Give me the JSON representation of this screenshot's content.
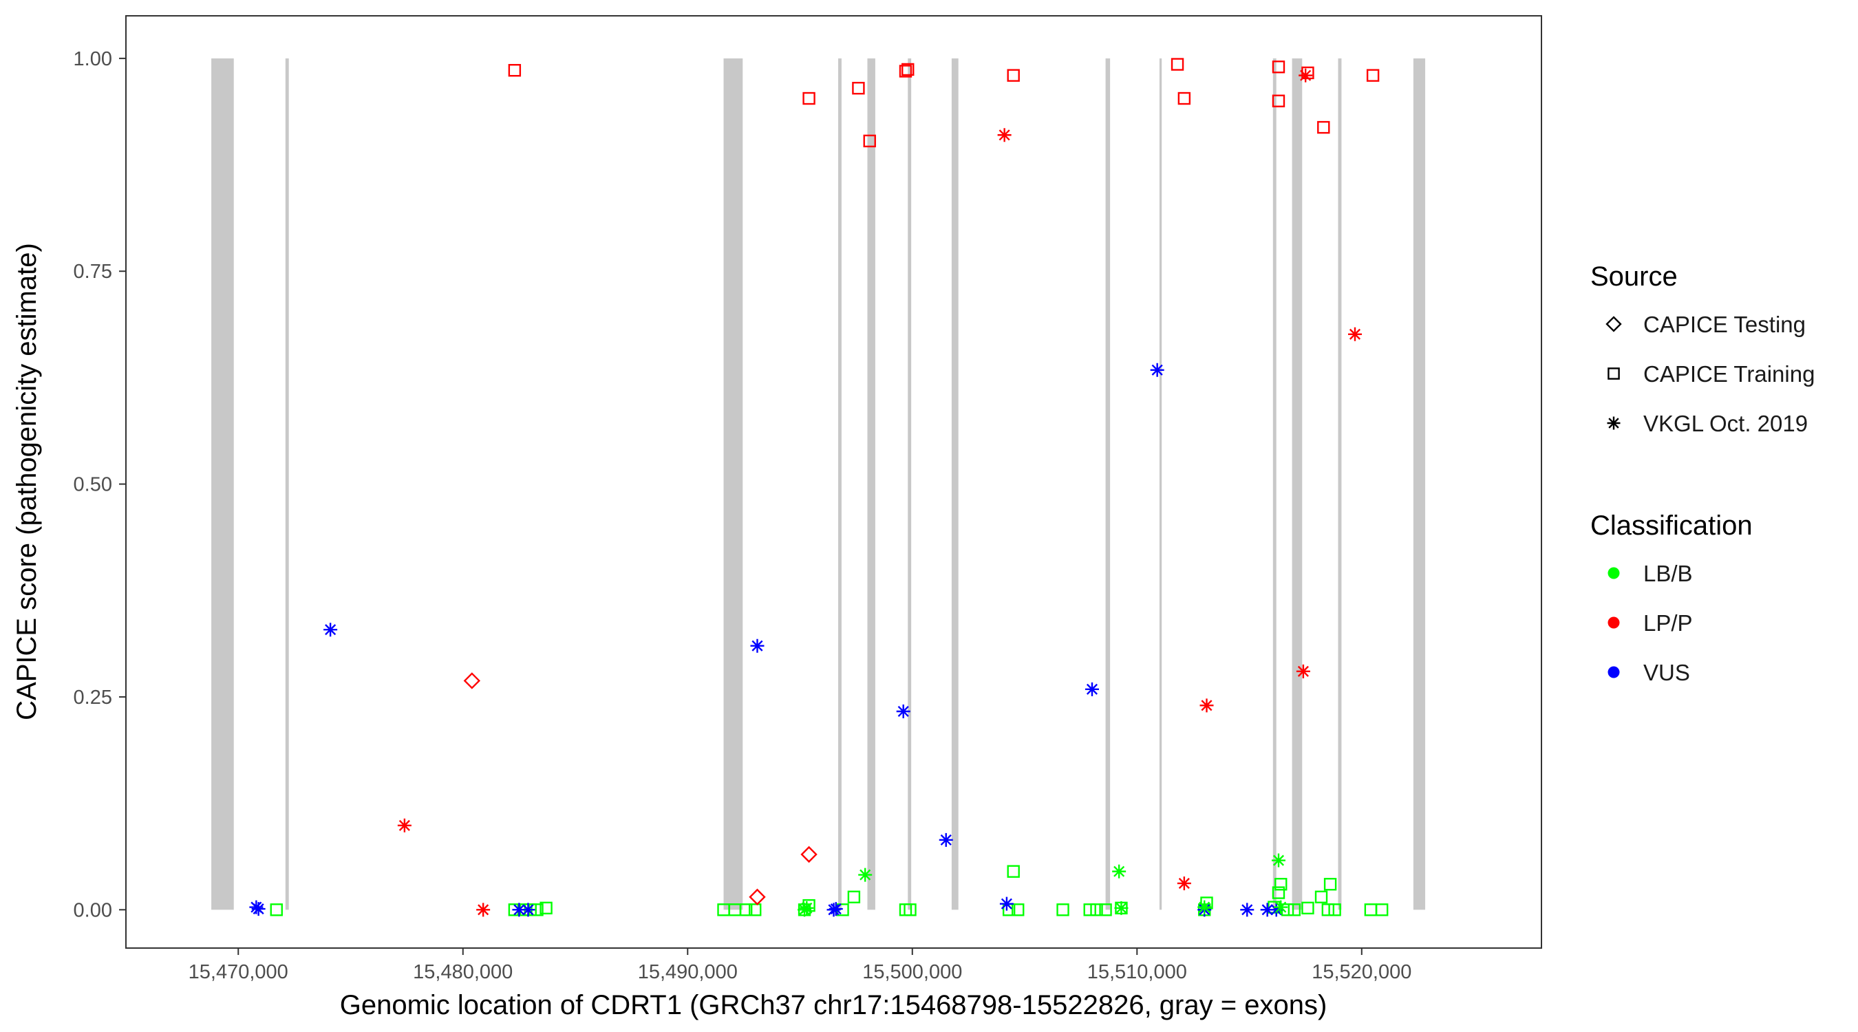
{
  "chart_data": {
    "type": "scatter",
    "xlabel": "Genomic location of CDRT1 (GRCh37 chr17:15468798-15522826, gray = exons)",
    "ylabel": "CAPICE score (pathogenicity estimate)",
    "xlim": [
      15465000,
      15528000
    ],
    "ylim": [
      -0.045,
      1.05
    ],
    "x_ticks": [
      15470000,
      15480000,
      15490000,
      15500000,
      15510000,
      15520000
    ],
    "x_tick_labels": [
      "15,470,000",
      "15,480,000",
      "15,490,000",
      "15,500,000",
      "15,510,000",
      "15,520,000"
    ],
    "y_ticks": [
      0,
      0.25,
      0.5,
      0.75,
      1
    ],
    "y_tick_labels": [
      "0.00",
      "0.25",
      "0.50",
      "0.75",
      "1.00"
    ],
    "grid": false,
    "exons": [
      [
        15468800,
        15469800
      ],
      [
        15472100,
        15472250
      ],
      [
        15491600,
        15492450
      ],
      [
        15496700,
        15496850
      ],
      [
        15498000,
        15498350
      ],
      [
        15499800,
        15499950
      ],
      [
        15501750,
        15502050
      ],
      [
        15508600,
        15508800
      ],
      [
        15511000,
        15511100
      ],
      [
        15516050,
        15516200
      ],
      [
        15516900,
        15517350
      ],
      [
        15518950,
        15519100
      ],
      [
        15522300,
        15522826
      ]
    ],
    "legend_placement": "right",
    "legends": {
      "source": {
        "title": "Source",
        "items": [
          {
            "label": "CAPICE Testing",
            "shape": "diamond"
          },
          {
            "label": "CAPICE Training",
            "shape": "square"
          },
          {
            "label": "VKGL Oct. 2019",
            "shape": "asterisk"
          }
        ]
      },
      "classification": {
        "title": "Classification",
        "items": [
          {
            "label": "LB/B",
            "color": "#00ff00"
          },
          {
            "label": "LP/P",
            "color": "#ff0000"
          },
          {
            "label": "VUS",
            "color": "#0000ff"
          }
        ]
      }
    },
    "series": [
      {
        "source": "CAPICE Training",
        "shape": "square",
        "classification": "LP/P",
        "color": "#ff0000",
        "points": [
          [
            15482300,
            0.986
          ],
          [
            15495400,
            0.953
          ],
          [
            15497600,
            0.965
          ],
          [
            15498100,
            0.903
          ],
          [
            15499700,
            0.985
          ],
          [
            15499800,
            0.987
          ],
          [
            15504500,
            0.98
          ],
          [
            15511800,
            0.993
          ],
          [
            15512100,
            0.953
          ],
          [
            15516300,
            0.99
          ],
          [
            15516300,
            0.95
          ],
          [
            15517600,
            0.983
          ],
          [
            15518300,
            0.919
          ],
          [
            15520500,
            0.98
          ]
        ]
      },
      {
        "source": "CAPICE Training",
        "shape": "square",
        "classification": "LB/B",
        "color": "#00ff00",
        "points": [
          [
            15471700,
            0.0
          ],
          [
            15482300,
            0.0
          ],
          [
            15482700,
            0.0
          ],
          [
            15483000,
            0.0
          ],
          [
            15483300,
            0.0
          ],
          [
            15483700,
            0.002
          ],
          [
            15491600,
            0.0
          ],
          [
            15492100,
            0.0
          ],
          [
            15492600,
            0.0
          ],
          [
            15493000,
            0.0
          ],
          [
            15495200,
            0.0
          ],
          [
            15495400,
            0.005
          ],
          [
            15496900,
            0.0
          ],
          [
            15497400,
            0.015
          ],
          [
            15499700,
            0.0
          ],
          [
            15499900,
            0.0
          ],
          [
            15504300,
            0.0
          ],
          [
            15504500,
            0.045
          ],
          [
            15504700,
            0.0
          ],
          [
            15506700,
            0.0
          ],
          [
            15507900,
            0.0
          ],
          [
            15508200,
            0.0
          ],
          [
            15508600,
            0.0
          ],
          [
            15509300,
            0.002
          ],
          [
            15513000,
            0.0
          ],
          [
            15513100,
            0.008
          ],
          [
            15516100,
            0.003
          ],
          [
            15516300,
            0.02
          ],
          [
            15516400,
            0.03
          ],
          [
            15516700,
            0.0
          ],
          [
            15517000,
            0.0
          ],
          [
            15517600,
            0.002
          ],
          [
            15518200,
            0.015
          ],
          [
            15518500,
            0.0
          ],
          [
            15518600,
            0.03
          ],
          [
            15518800,
            0.0
          ],
          [
            15520400,
            0.0
          ],
          [
            15520900,
            0.0
          ]
        ]
      },
      {
        "source": "CAPICE Testing",
        "shape": "diamond",
        "classification": "LP/P",
        "color": "#ff0000",
        "points": [
          [
            15480400,
            0.269
          ],
          [
            15493100,
            0.015
          ],
          [
            15495400,
            0.065
          ]
        ]
      },
      {
        "source": "VKGL Oct. 2019",
        "shape": "asterisk",
        "classification": "VUS",
        "color": "#0000ff",
        "points": [
          [
            15470800,
            0.003
          ],
          [
            15470900,
            0.001
          ],
          [
            15474100,
            0.329
          ],
          [
            15482500,
            0.0
          ],
          [
            15482900,
            0.0
          ],
          [
            15493100,
            0.31
          ],
          [
            15496500,
            0.0
          ],
          [
            15496600,
            0.001
          ],
          [
            15499600,
            0.233
          ],
          [
            15501500,
            0.082
          ],
          [
            15504200,
            0.007
          ],
          [
            15508000,
            0.259
          ],
          [
            15510900,
            0.634
          ],
          [
            15513000,
            0.0
          ],
          [
            15514900,
            0.0
          ],
          [
            15515800,
            0.0
          ],
          [
            15516200,
            0.0
          ]
        ]
      },
      {
        "source": "VKGL Oct. 2019",
        "shape": "asterisk",
        "classification": "LP/P",
        "color": "#ff0000",
        "points": [
          [
            15477400,
            0.099
          ],
          [
            15480900,
            0.0
          ],
          [
            15504100,
            0.91
          ],
          [
            15512100,
            0.031
          ],
          [
            15513100,
            0.24
          ],
          [
            15517400,
            0.28
          ],
          [
            15517500,
            0.98
          ],
          [
            15519700,
            0.676
          ]
        ]
      },
      {
        "source": "VKGL Oct. 2019",
        "shape": "asterisk",
        "classification": "LB/B",
        "color": "#00ff00",
        "points": [
          [
            15495200,
            0.0
          ],
          [
            15495300,
            0.002
          ],
          [
            15497900,
            0.041
          ],
          [
            15509200,
            0.045
          ],
          [
            15509300,
            0.002
          ],
          [
            15513000,
            0.003
          ],
          [
            15516300,
            0.058
          ],
          [
            15516400,
            0.003
          ]
        ]
      }
    ]
  }
}
